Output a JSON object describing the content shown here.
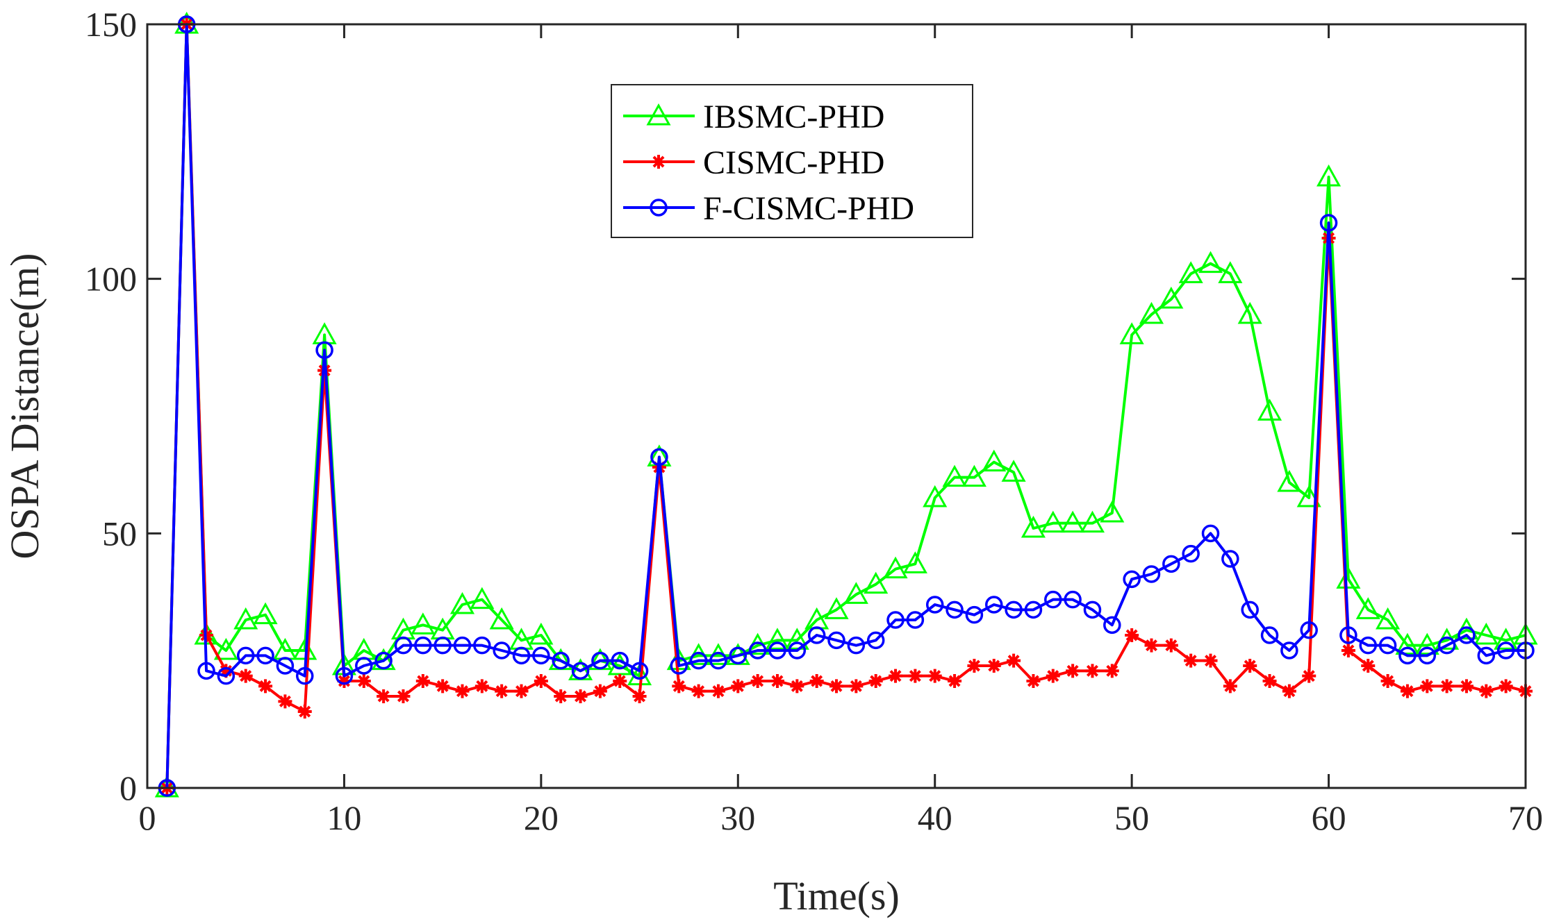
{
  "chart_data": {
    "type": "line",
    "title": "",
    "xlabel": "Time(s)",
    "ylabel": "OSPA Distance(m)",
    "xlim": [
      0,
      70
    ],
    "ylim": [
      0,
      150
    ],
    "xticks": [
      0,
      10,
      20,
      30,
      40,
      50,
      60,
      70
    ],
    "yticks": [
      0,
      50,
      100,
      150
    ],
    "grid": false,
    "legend_position": "top-center",
    "x": [
      1,
      2,
      3,
      4,
      5,
      6,
      7,
      8,
      9,
      10,
      11,
      12,
      13,
      14,
      15,
      16,
      17,
      18,
      19,
      20,
      21,
      22,
      23,
      24,
      25,
      26,
      27,
      28,
      29,
      30,
      31,
      32,
      33,
      34,
      35,
      36,
      37,
      38,
      39,
      40,
      41,
      42,
      43,
      44,
      45,
      46,
      47,
      48,
      49,
      50,
      51,
      52,
      53,
      54,
      55,
      56,
      57,
      58,
      59,
      60,
      61,
      62,
      63,
      64,
      65,
      66,
      67,
      68,
      69,
      70
    ],
    "series": [
      {
        "name": "IBSMC-PHD",
        "color": "#00ff00",
        "marker": "triangle",
        "values": [
          0,
          150,
          30,
          27,
          33,
          34,
          27,
          27,
          89,
          24,
          27,
          25,
          31,
          32,
          31,
          36,
          37,
          33,
          29,
          30,
          25,
          23,
          25,
          24,
          22,
          65,
          25,
          26,
          26,
          26,
          28,
          29,
          29,
          33,
          35,
          38,
          40,
          43,
          44,
          57,
          61,
          61,
          64,
          62,
          51,
          52,
          52,
          52,
          54,
          89,
          93,
          96,
          101,
          103,
          101,
          93,
          74,
          60,
          57,
          120,
          41,
          35,
          33,
          28,
          28,
          29,
          31,
          30,
          29,
          30
        ]
      },
      {
        "name": "CISMC-PHD",
        "color": "#ff0000",
        "marker": "asterisk",
        "values": [
          0,
          150,
          30,
          23,
          22,
          20,
          17,
          15,
          82,
          21,
          21,
          18,
          18,
          21,
          20,
          19,
          20,
          19,
          19,
          21,
          18,
          18,
          19,
          21,
          18,
          63,
          20,
          19,
          19,
          20,
          21,
          21,
          20,
          21,
          20,
          20,
          21,
          22,
          22,
          22,
          21,
          24,
          24,
          25,
          21,
          22,
          23,
          23,
          23,
          30,
          28,
          28,
          25,
          25,
          20,
          24,
          21,
          19,
          22,
          108,
          27,
          24,
          21,
          19,
          20,
          20,
          20,
          19,
          20,
          19
        ]
      },
      {
        "name": "F-CISMC-PHD",
        "color": "#0000ff",
        "marker": "circle",
        "values": [
          0,
          150,
          23,
          22,
          26,
          26,
          24,
          22,
          86,
          22,
          24,
          25,
          28,
          28,
          28,
          28,
          28,
          27,
          26,
          26,
          25,
          23,
          25,
          25,
          23,
          65,
          24,
          25,
          25,
          26,
          27,
          27,
          27,
          30,
          29,
          28,
          29,
          33,
          33,
          36,
          35,
          34,
          36,
          35,
          35,
          37,
          37,
          35,
          32,
          41,
          42,
          44,
          46,
          50,
          45,
          35,
          30,
          27,
          31,
          111,
          30,
          28,
          28,
          26,
          26,
          28,
          30,
          26,
          27,
          27
        ]
      }
    ]
  }
}
